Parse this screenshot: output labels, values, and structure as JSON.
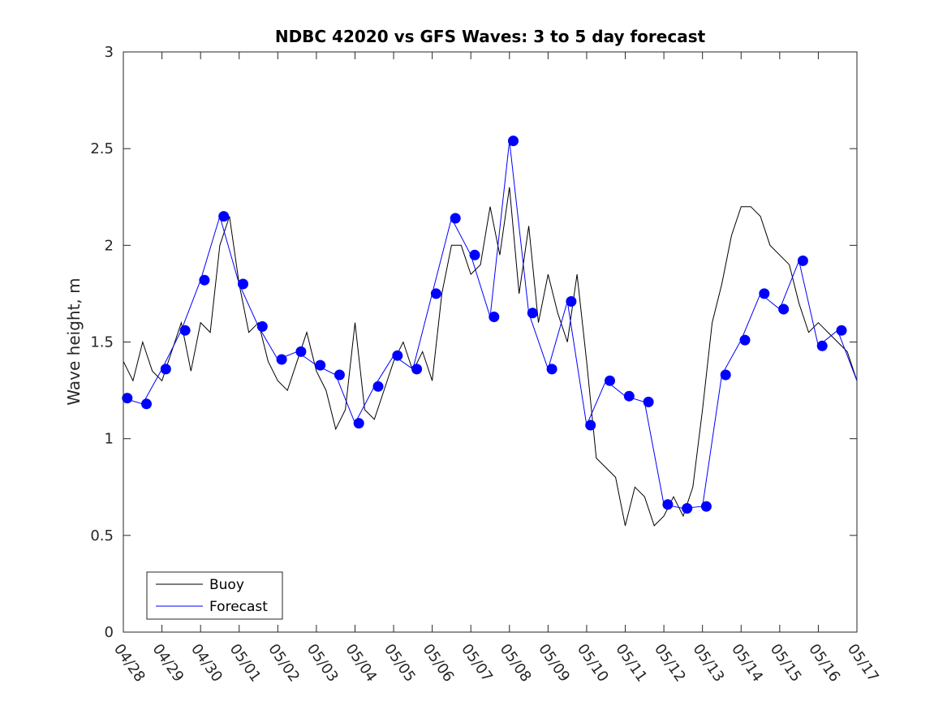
{
  "chart_data": {
    "type": "line",
    "title": "NDBC 42020 vs GFS Waves: 3 to 5 day forecast",
    "ylabel": "Wave height, m",
    "xlabel": "",
    "x_tick_labels": [
      "04/28",
      "04/29",
      "04/30",
      "05/01",
      "05/02",
      "05/03",
      "05/04",
      "05/05",
      "05/06",
      "05/07",
      "05/08",
      "05/09",
      "05/10",
      "05/11",
      "05/12",
      "05/13",
      "05/14",
      "05/15",
      "05/16",
      "05/17"
    ],
    "ylim": [
      0,
      3
    ],
    "y_ticks": [
      0,
      0.5,
      1,
      1.5,
      2,
      2.5,
      3
    ],
    "y_tick_labels": [
      "0",
      "0.5",
      "1",
      "1.5",
      "2",
      "2.5",
      "3"
    ],
    "xlim": [
      0,
      19
    ],
    "legend": {
      "placement": "bottom-left",
      "entries": [
        {
          "label": "Buoy",
          "color": "#000000"
        },
        {
          "label": "Forecast",
          "color": "#0000ff"
        }
      ]
    },
    "series": [
      {
        "name": "Buoy",
        "color": "#000000",
        "x": [
          0,
          0.25,
          0.5,
          0.75,
          1,
          1.25,
          1.5,
          1.75,
          2,
          2.25,
          2.5,
          2.75,
          3,
          3.25,
          3.5,
          3.75,
          4,
          4.25,
          4.5,
          4.75,
          5,
          5.25,
          5.5,
          5.75,
          6,
          6.25,
          6.5,
          6.75,
          7,
          7.25,
          7.5,
          7.75,
          8,
          8.25,
          8.5,
          8.75,
          9,
          9.25,
          9.5,
          9.75,
          10,
          10.25,
          10.5,
          10.75,
          11,
          11.25,
          11.5,
          11.75,
          12,
          12.25,
          12.5,
          12.75,
          13,
          13.25,
          13.5,
          13.75,
          14,
          14.25,
          14.5,
          14.75,
          15,
          15.25,
          15.5,
          15.75,
          16,
          16.25,
          16.5,
          16.75,
          17,
          17.25,
          17.5,
          17.75,
          18,
          18.25,
          18.5,
          18.75,
          19
        ],
        "y": [
          1.4,
          1.3,
          1.5,
          1.35,
          1.3,
          1.45,
          1.6,
          1.35,
          1.6,
          1.55,
          2.0,
          2.15,
          1.8,
          1.55,
          1.6,
          1.4,
          1.3,
          1.25,
          1.4,
          1.55,
          1.35,
          1.25,
          1.05,
          1.15,
          1.6,
          1.15,
          1.1,
          1.25,
          1.4,
          1.5,
          1.35,
          1.45,
          1.3,
          1.75,
          2.0,
          2.0,
          1.85,
          1.9,
          2.2,
          1.95,
          2.3,
          1.75,
          2.1,
          1.6,
          1.85,
          1.65,
          1.5,
          1.85,
          1.4,
          0.9,
          0.85,
          0.8,
          0.55,
          0.75,
          0.7,
          0.55,
          0.6,
          0.7,
          0.6,
          0.75,
          1.15,
          1.6,
          1.8,
          2.05,
          2.2,
          2.2,
          2.15,
          2.0,
          1.95,
          1.9,
          1.7,
          1.55,
          1.6,
          1.55,
          1.5,
          1.45,
          1.3
        ]
      },
      {
        "name": "Forecast",
        "color": "#0000ff",
        "x": [
          0,
          0.5,
          1,
          1.5,
          2,
          2.5,
          3,
          3.5,
          4,
          4.5,
          5,
          5.5,
          6,
          6.5,
          7,
          7.5,
          8,
          8.5,
          9,
          9.5,
          10,
          10.5,
          11,
          11.5,
          12,
          12.5,
          13,
          13.5,
          14,
          14.5,
          15,
          15.5,
          16,
          16.5,
          17,
          17.5,
          18,
          18.5,
          19
        ],
        "y": [
          1.21,
          1.18,
          1.36,
          1.56,
          1.82,
          2.15,
          1.8,
          1.58,
          1.41,
          1.45,
          1.38,
          1.33,
          1.08,
          1.27,
          1.43,
          1.36,
          1.75,
          2.14,
          1.95,
          1.63,
          2.54,
          1.65,
          1.36,
          1.71,
          1.07,
          1.3,
          1.22,
          1.19,
          0.66,
          0.64,
          0.65,
          1.33,
          1.51,
          1.75,
          1.67,
          1.92,
          1.48,
          1.56,
          1.3
        ]
      }
    ],
    "markers": {
      "color": "#0000ff",
      "x": [
        0.1,
        0.6,
        1.1,
        1.6,
        2.1,
        2.6,
        3.1,
        3.6,
        4.1,
        4.6,
        5.1,
        5.6,
        6.1,
        6.6,
        7.1,
        7.6,
        8.1,
        8.6,
        9.1,
        9.6,
        10.1,
        10.6,
        11.1,
        11.6,
        12.1,
        12.6,
        13.1,
        13.6,
        14.1,
        14.6,
        15.1,
        15.6,
        16.1,
        16.6,
        17.1,
        17.6,
        18.1,
        18.6
      ],
      "y": [
        1.21,
        1.18,
        1.36,
        1.56,
        1.82,
        2.15,
        1.8,
        1.58,
        1.41,
        1.45,
        1.38,
        1.33,
        1.08,
        1.27,
        1.43,
        1.36,
        1.75,
        2.14,
        1.95,
        1.63,
        2.54,
        1.65,
        1.36,
        1.71,
        1.07,
        1.3,
        1.22,
        1.19,
        0.66,
        0.64,
        0.65,
        1.33,
        1.51,
        1.75,
        1.67,
        1.92,
        1.48,
        1.56
      ]
    }
  }
}
